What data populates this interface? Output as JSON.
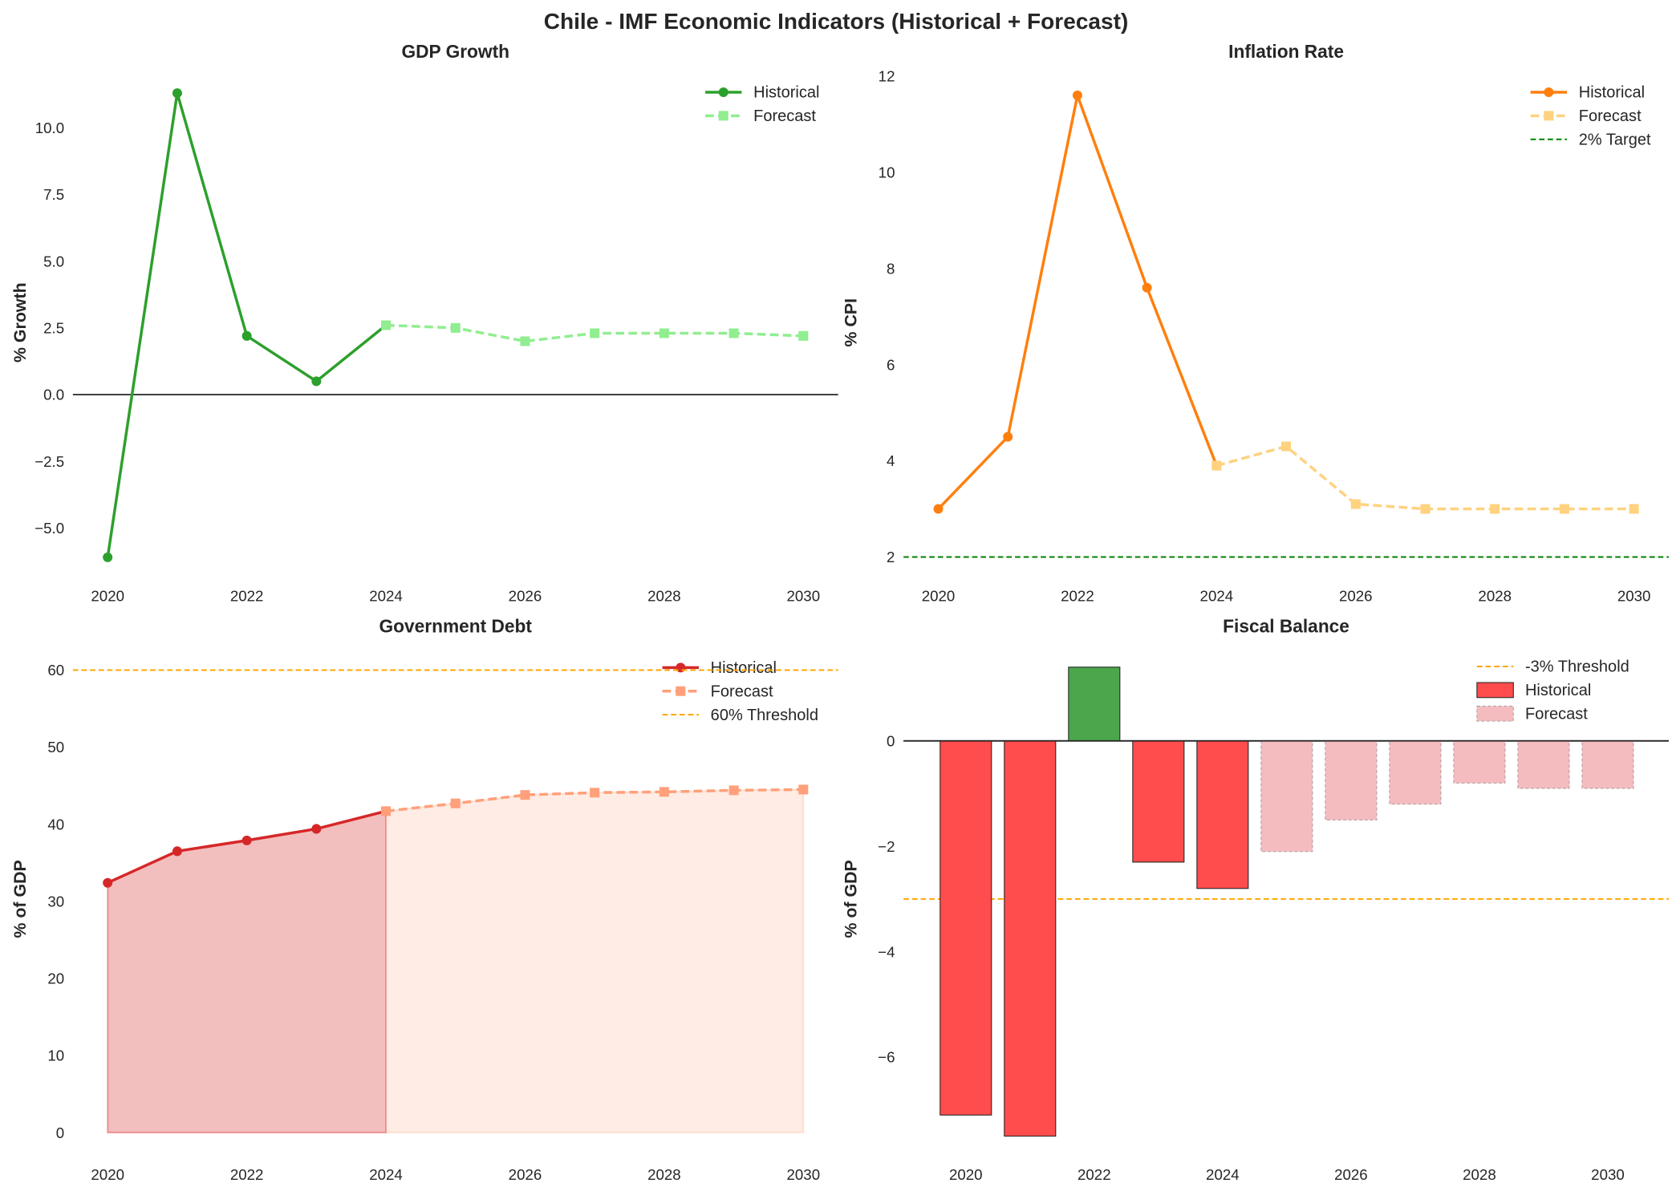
{
  "suptitle": "Chile - IMF Economic Indicators (Historical + Forecast)",
  "colors": {
    "gdp_hist": "#2ca02c",
    "gdp_fc": "#90ee90",
    "inf_hist": "#ff7f0e",
    "inf_fc": "#ffd27f",
    "debt_hist": "#d62728",
    "debt_fc": "#ffa07a",
    "threshold": "#ffa500",
    "target": "#008000",
    "bar_neg": "#ff4c4c",
    "bar_pos": "#4ca64c",
    "bar_fc": "#f5bcbf"
  },
  "chart_data": [
    {
      "id": "gdp",
      "type": "line",
      "title": "GDP Growth",
      "xlabel": "",
      "ylabel": "% Growth",
      "xlim": [
        2019.5,
        2030.5
      ],
      "ylim": [
        -6.9,
        12.3
      ],
      "grid": false,
      "legend": "top-right",
      "xticks": [
        2020,
        2022,
        2024,
        2026,
        2028,
        2030
      ],
      "yticks": [
        -5,
        -2.5,
        0,
        2.5,
        5,
        7.5,
        10
      ],
      "ytick_labels": [
        "−5.0",
        "−2.5",
        "0.0",
        "2.5",
        "5.0",
        "7.5",
        "10.0"
      ],
      "zero_line": true,
      "series": [
        {
          "name": "Historical",
          "x": [
            2020,
            2021,
            2022,
            2023,
            2024
          ],
          "y": [
            -6.1,
            11.3,
            2.2,
            0.5,
            2.6
          ],
          "style": "solid-circle",
          "color_key": "gdp_hist"
        },
        {
          "name": "Forecast",
          "x": [
            2024,
            2025,
            2026,
            2027,
            2028,
            2029,
            2030
          ],
          "y": [
            2.6,
            2.5,
            2.0,
            2.3,
            2.3,
            2.3,
            2.2
          ],
          "style": "dashed-square",
          "color_key": "gdp_fc"
        }
      ],
      "hlines": []
    },
    {
      "id": "inflation",
      "type": "line",
      "title": "Inflation Rate",
      "xlabel": "",
      "ylabel": "% CPI",
      "xlim": [
        2019.5,
        2030.5
      ],
      "ylim": [
        1.55,
        12.2
      ],
      "grid": false,
      "legend": "top-right",
      "xticks": [
        2020,
        2022,
        2024,
        2026,
        2028,
        2030
      ],
      "yticks": [
        2,
        4,
        6,
        8,
        10,
        12
      ],
      "ytick_labels": [
        "2",
        "4",
        "6",
        "8",
        "10",
        "12"
      ],
      "zero_line": false,
      "series": [
        {
          "name": "Historical",
          "x": [
            2020,
            2021,
            2022,
            2023,
            2024
          ],
          "y": [
            3.0,
            4.5,
            11.6,
            7.6,
            3.9
          ],
          "style": "solid-circle",
          "color_key": "inf_hist"
        },
        {
          "name": "Forecast",
          "x": [
            2024,
            2025,
            2026,
            2027,
            2028,
            2029,
            2030
          ],
          "y": [
            3.9,
            4.3,
            3.1,
            3.0,
            3.0,
            3.0,
            3.0
          ],
          "style": "dashed-square",
          "color_key": "inf_fc"
        }
      ],
      "hlines": [
        {
          "name": "2% Target",
          "y": 2,
          "color_key": "target"
        }
      ]
    },
    {
      "id": "debt",
      "type": "area",
      "title": "Government Debt",
      "xlabel": "",
      "ylabel": "% of GDP",
      "xlim": [
        2019.5,
        2030.5
      ],
      "ylim": [
        -3.2,
        63.8
      ],
      "grid": false,
      "legend": "top-right",
      "xticks": [
        2020,
        2022,
        2024,
        2026,
        2028,
        2030
      ],
      "yticks": [
        0,
        10,
        20,
        30,
        40,
        50,
        60
      ],
      "ytick_labels": [
        "0",
        "10",
        "20",
        "30",
        "40",
        "50",
        "60"
      ],
      "zero_line": false,
      "series": [
        {
          "name": "Historical",
          "x": [
            2020,
            2021,
            2022,
            2023,
            2024
          ],
          "y": [
            32.4,
            36.5,
            37.9,
            39.4,
            41.7
          ],
          "style": "solid-circle",
          "color_key": "debt_hist"
        },
        {
          "name": "Forecast",
          "x": [
            2024,
            2025,
            2026,
            2027,
            2028,
            2029,
            2030
          ],
          "y": [
            41.7,
            42.7,
            43.8,
            44.1,
            44.2,
            44.4,
            44.5
          ],
          "style": "dashed-square",
          "color_key": "debt_fc"
        }
      ],
      "hlines": [
        {
          "name": "60% Threshold",
          "y": 60,
          "color_key": "threshold"
        }
      ]
    },
    {
      "id": "fiscal",
      "type": "bar",
      "title": "Fiscal Balance",
      "xlabel": "",
      "ylabel": "% of GDP",
      "xlim": [
        2019.03,
        2030.95
      ],
      "ylim": [
        -7.9,
        1.9
      ],
      "grid": false,
      "legend": "top-right",
      "xticks": [
        2020,
        2022,
        2024,
        2026,
        2028,
        2030
      ],
      "yticks": [
        -6,
        -4,
        -2,
        0
      ],
      "ytick_labels": [
        "−6",
        "−4",
        "−2",
        "0"
      ],
      "zero_line": true,
      "series": [
        {
          "name": "Historical",
          "x": [
            2020,
            2021,
            2022,
            2023,
            2024
          ],
          "y": [
            -7.1,
            -7.5,
            1.4,
            -2.3,
            -2.8
          ],
          "color_key": "bar_neg"
        },
        {
          "name": "Forecast",
          "x": [
            2025,
            2026,
            2027,
            2028,
            2029,
            2030
          ],
          "y": [
            -2.1,
            -1.5,
            -1.2,
            -0.8,
            -0.9,
            -0.9
          ],
          "color_key": "bar_fc"
        }
      ],
      "hlines": [
        {
          "name": "-3% Threshold",
          "y": -3,
          "color_key": "threshold"
        }
      ]
    }
  ]
}
